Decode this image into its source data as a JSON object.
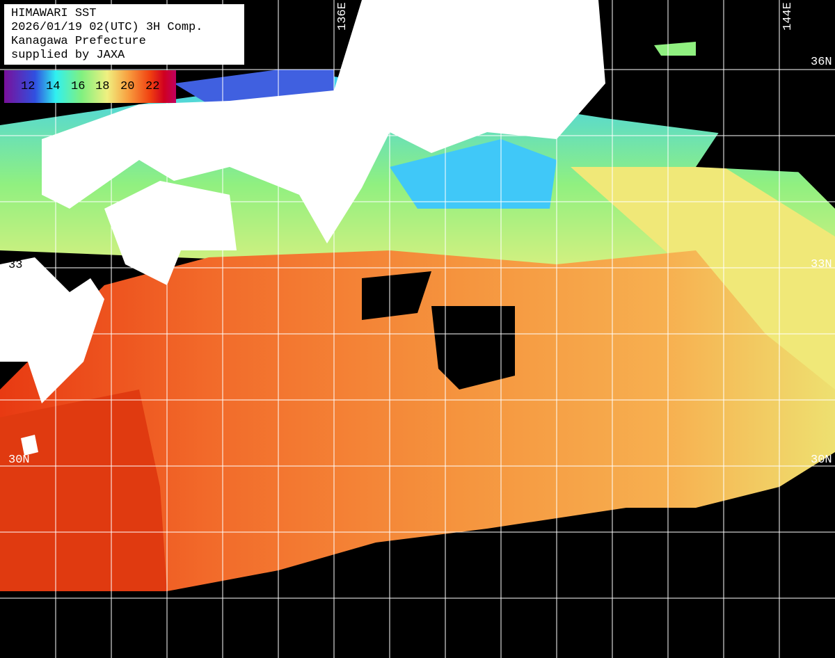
{
  "title": {
    "lines": [
      "HIMAWARI SST",
      "2026/01/19 02(UTC) 3H Comp.",
      "Kanagawa Prefecture",
      "supplied by JAXA"
    ]
  },
  "colorbar": {
    "labels": [
      "12",
      "14",
      "16",
      "18",
      "20",
      "22"
    ],
    "colors": [
      "#7a109a",
      "#3050e0",
      "#30f0f0",
      "#80f080",
      "#f0f080",
      "#f8a040",
      "#f04010",
      "#d00020",
      "#c00060"
    ]
  },
  "grid": {
    "lon_labels": [
      "136E",
      "144E"
    ],
    "lat_labels_right": [
      "36N",
      "33N",
      "30N"
    ],
    "lat_labels_left": [
      "33",
      "30N"
    ]
  },
  "colors": {
    "land": "#ffffff",
    "no_data": "#000000",
    "grid": "#ffffff"
  }
}
